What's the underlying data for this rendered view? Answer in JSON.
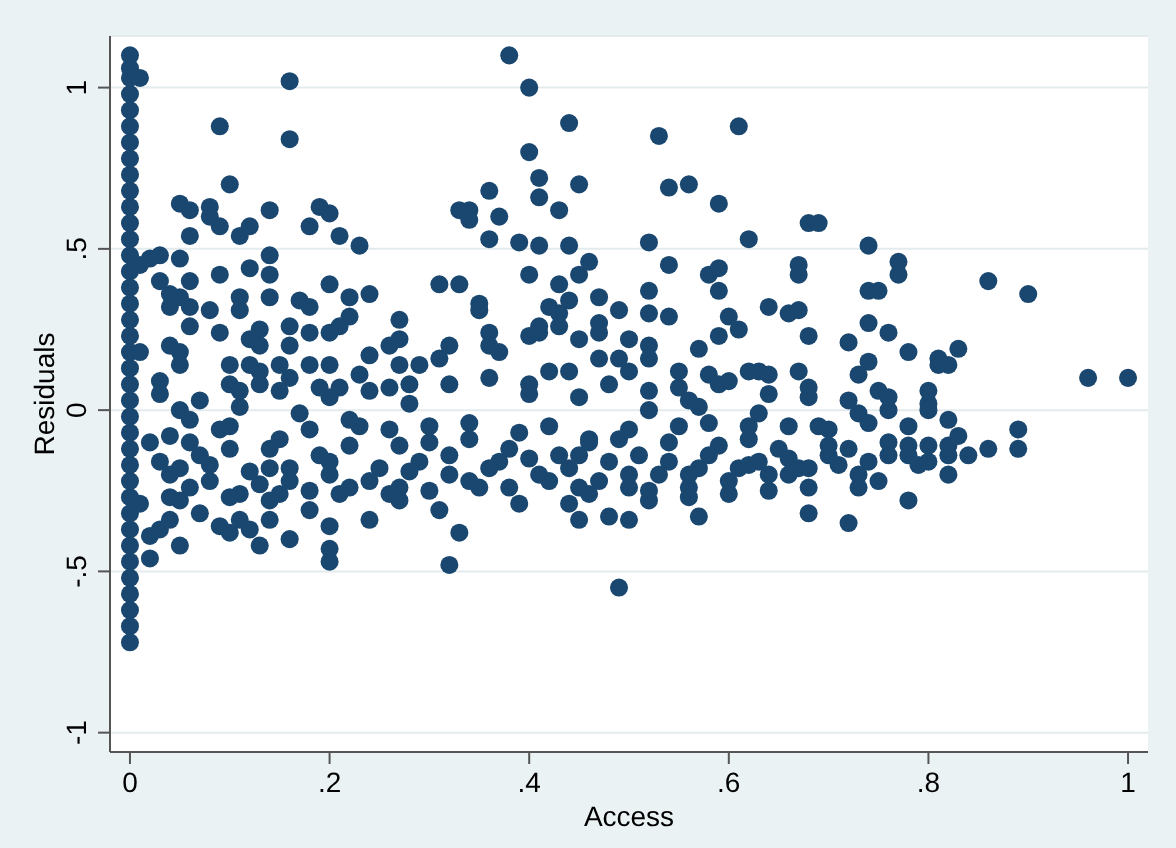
{
  "chart_data": {
    "type": "scatter",
    "xlabel": "Access",
    "ylabel": "Residuals",
    "color": "#1a476f",
    "marker": "circle",
    "grid": "y",
    "xlim": [
      -0.02,
      1.02
    ],
    "ylim": [
      -1.06,
      1.16
    ],
    "xticks": [
      0,
      {
        "value": 0.2,
        "label": ".2"
      },
      {
        "value": 0.4,
        "label": ".4"
      },
      {
        "value": 0.6,
        "label": ".6"
      },
      {
        "value": 0.8,
        "label": ".8"
      },
      1
    ],
    "yticks": [
      -1,
      {
        "value": -0.5,
        "label": "-.5"
      },
      0,
      {
        "value": 0.5,
        "label": ".5"
      },
      1
    ],
    "x": [
      0,
      0,
      0,
      0,
      0,
      0,
      0,
      0,
      0,
      0,
      0,
      0,
      0,
      0,
      0,
      0,
      0,
      0,
      0,
      0,
      0,
      0,
      0,
      0,
      0,
      0,
      0,
      0,
      0,
      0,
      0,
      0,
      0,
      0,
      0,
      0,
      0,
      0,
      0.01,
      0.01,
      0.09,
      0.16,
      0.16,
      0.1,
      0.05,
      0.06,
      0.08,
      0.08,
      0.09,
      0.06,
      0.11,
      0.12,
      0.14,
      0.19,
      0.18,
      0.2,
      0.21,
      0.23,
      0.03,
      0.02,
      0.05,
      0.14,
      0.14,
      0.09,
      0.12,
      0.03,
      0.06,
      0.04,
      0.05,
      0.11,
      0.14,
      0.04,
      0.06,
      0.08,
      0.11,
      0.17,
      0.18,
      0.2,
      0.22,
      0.24,
      0.27,
      0.27,
      0.22,
      0.21,
      0.2,
      0.18,
      0.16,
      0.16,
      0.06,
      0.09,
      0.13,
      0.13,
      0.12,
      0.05,
      0.04,
      0.01,
      0.03,
      0.05,
      0.1,
      0.13,
      0.15,
      0.18,
      0.2,
      0.24,
      0.26,
      0.27,
      0.29,
      0.1,
      0.11,
      0.13,
      0.15,
      0.19,
      0.21,
      0.23,
      0.26,
      0.28,
      0.31,
      0.32,
      0.31,
      0.33,
      0.35,
      0.35,
      0.36,
      0.36,
      0.37,
      0.33,
      0.34,
      0.34,
      0.36,
      0.36,
      0.37,
      0.38,
      0.4,
      0.4,
      0.41,
      0.41,
      0.39,
      0.41,
      0.4,
      0.4,
      0.41,
      0.41,
      0.43,
      0.44,
      0.43,
      0.44,
      0.45,
      0.43,
      0.44,
      0.45,
      0.46,
      0.45,
      0.43,
      0.42,
      0.47,
      0.47,
      0.4,
      0.42,
      0.45,
      0.53,
      0.61,
      0.54,
      0.56,
      0.59,
      0.62,
      0.52,
      0.68,
      0.69,
      0.74,
      0.77,
      0.77,
      0.75,
      0.74,
      0.86,
      0.9,
      0.96,
      1,
      0.67,
      0.67,
      0.58,
      0.59,
      0.59,
      0.54,
      0.52,
      0.47,
      0.49,
      0.52,
      0.54,
      0.47,
      0.5,
      0.52,
      0.57,
      0.59,
      0.6,
      0.61,
      0.64,
      0.66,
      0.67,
      0.68,
      0.72,
      0.74,
      0.76,
      0.74,
      0.78,
      0.81,
      0.81,
      0.83,
      0.82,
      0.73,
      0.75,
      0.67,
      0.68,
      0.62,
      0.63,
      0.64,
      0.58,
      0.55,
      0.52,
      0.5,
      0.49,
      0.59,
      0.55,
      0.89,
      0.83,
      0.8,
      0.02,
      0.05,
      0.02,
      0.03,
      0.01,
      0.07,
      0.09,
      0.1,
      0.11,
      0.13,
      0.16,
      0.12,
      0.14,
      0.15,
      0.2,
      0.2,
      0.2,
      0.18,
      0.24,
      0.27,
      0.32,
      0.33,
      0.31,
      0.39,
      0.44,
      0.45,
      0.04,
      0.05,
      0.04,
      0.03,
      0.02,
      0.04,
      0.05,
      0.06,
      0.05,
      0.07,
      0.09,
      0.08,
      0.1,
      0.11,
      0.11,
      0.13,
      0.14,
      0.15,
      0.16,
      0.17,
      0.19,
      0.2,
      0.21,
      0.22,
      0.23,
      0.25,
      0.27,
      0.27,
      0.29,
      0.3,
      0.32,
      0.34,
      0.35,
      0.37,
      0.39,
      0.41,
      0.43,
      0.45,
      0.46,
      0.48,
      0.5,
      0.57,
      0.68,
      0.72,
      0.78,
      0.49,
      0.89,
      0.84,
      0.82,
      0.8,
      0.79,
      0.78,
      0.76,
      0.73,
      0.73,
      0.71,
      0.7,
      0.69,
      0.67,
      0.66,
      0.65,
      0.63,
      0.62,
      0.61,
      0.59,
      0.57,
      0.56,
      0.55,
      0.53,
      0.51,
      0.5,
      0.49,
      0.47,
      0.45,
      0.8,
      0.76,
      0.73,
      0.63,
      0.57,
      0.52,
      0.04,
      0.06,
      0.08,
      0.1,
      0.12,
      0.14,
      0.16,
      0.18,
      0.2,
      0.22,
      0.24,
      0.26,
      0.28,
      0.3,
      0.32,
      0.34,
      0.36,
      0.38,
      0.4,
      0.42,
      0.44,
      0.46,
      0.48,
      0.5,
      0.52,
      0.54,
      0.56,
      0.58,
      0.6,
      0.62,
      0.64,
      0.66,
      0.68,
      0.7,
      0.72,
      0.74,
      0.76,
      0.78,
      0.8,
      0.82,
      0.06,
      0.1,
      0.14,
      0.18,
      0.22,
      0.26,
      0.3,
      0.34,
      0.38,
      0.42,
      0.46,
      0.5,
      0.54,
      0.58,
      0.62,
      0.66,
      0.7,
      0.74,
      0.78,
      0.82,
      0.03,
      0.07,
      0.12,
      0.16,
      0.2,
      0.24,
      0.28,
      0.32,
      0.36,
      0.4,
      0.44,
      0.48,
      0.52,
      0.56,
      0.6,
      0.64,
      0.68,
      0.72,
      0.76,
      0.8,
      0.52,
      0.56,
      0.6,
      0.64,
      0.68,
      0.75,
      0.82,
      0.86
    ],
    "values": [
      -0.72,
      -0.67,
      -0.62,
      -0.57,
      -0.52,
      -0.47,
      -0.42,
      -0.37,
      -0.32,
      -0.27,
      -0.22,
      -0.17,
      -0.12,
      -0.07,
      -0.02,
      0.03,
      0.08,
      0.13,
      0.18,
      0.23,
      0.28,
      0.33,
      0.38,
      0.43,
      0.48,
      0.53,
      0.58,
      0.63,
      0.68,
      0.73,
      0.78,
      0.83,
      0.88,
      0.93,
      0.98,
      1.03,
      1.06,
      1.1,
      0.45,
      1.03,
      0.88,
      1.02,
      0.84,
      0.7,
      0.64,
      0.62,
      0.63,
      0.6,
      0.57,
      0.54,
      0.54,
      0.57,
      0.62,
      0.63,
      0.57,
      0.61,
      0.54,
      0.51,
      0.48,
      0.47,
      0.47,
      0.48,
      0.42,
      0.42,
      0.44,
      0.4,
      0.4,
      0.36,
      0.35,
      0.35,
      0.35,
      0.32,
      0.32,
      0.31,
      0.31,
      0.34,
      0.32,
      0.39,
      0.35,
      0.36,
      0.28,
      0.22,
      0.29,
      0.26,
      0.24,
      0.24,
      0.26,
      0.2,
      0.26,
      0.24,
      0.25,
      0.2,
      0.22,
      0.18,
      0.2,
      0.18,
      0.09,
      0.14,
      0.14,
      0.12,
      0.14,
      0.14,
      0.14,
      0.17,
      0.2,
      0.14,
      0.14,
      0.08,
      0.06,
      0.08,
      0.06,
      0.07,
      0.07,
      0.11,
      0.07,
      0.08,
      0.16,
      0.2,
      0.39,
      0.39,
      0.33,
      0.31,
      0.24,
      0.2,
      0.18,
      0.62,
      0.62,
      0.59,
      0.68,
      0.53,
      0.6,
      1.1,
      1.0,
      0.8,
      0.72,
      0.66,
      0.52,
      0.51,
      0.42,
      0.23,
      0.26,
      0.24,
      0.26,
      0.51,
      0.39,
      0.89,
      0.7,
      0.62,
      0.34,
      0.42,
      0.46,
      0.22,
      0.3,
      0.32,
      0.27,
      0.16,
      0.08,
      0.12,
      0.04,
      0.85,
      0.88,
      0.69,
      0.7,
      0.64,
      0.53,
      0.52,
      0.58,
      0.58,
      0.51,
      0.46,
      0.42,
      0.37,
      0.37,
      0.4,
      0.36,
      0.1,
      0.1,
      0.45,
      0.42,
      0.42,
      0.44,
      0.37,
      0.45,
      0.37,
      0.35,
      0.31,
      0.3,
      0.29,
      0.24,
      0.22,
      0.2,
      0.19,
      0.23,
      0.29,
      0.25,
      0.32,
      0.3,
      0.31,
      0.23,
      0.21,
      0.27,
      0.24,
      0.15,
      0.18,
      0.14,
      0.16,
      0.19,
      0.14,
      0.11,
      0.06,
      0.12,
      0.04,
      0.12,
      0.12,
      0.11,
      0.11,
      0.12,
      0.16,
      0.12,
      0.16,
      0.08,
      0.07,
      -0.06,
      -0.08,
      0.02,
      -0.46,
      -0.42,
      -0.39,
      -0.37,
      -0.29,
      -0.32,
      -0.36,
      -0.38,
      -0.34,
      -0.42,
      -0.4,
      -0.37,
      -0.34,
      -0.26,
      -0.43,
      -0.47,
      -0.36,
      -0.31,
      -0.34,
      -0.28,
      -0.48,
      -0.38,
      -0.31,
      -0.29,
      -0.29,
      -0.34,
      -0.34,
      -0.28,
      -0.27,
      -0.16,
      -0.1,
      -0.08,
      0,
      -0.03,
      -0.18,
      -0.14,
      -0.06,
      -0.22,
      -0.12,
      0.01,
      -0.26,
      -0.23,
      -0.18,
      -0.09,
      -0.18,
      -0.01,
      -0.14,
      -0.2,
      -0.26,
      -0.11,
      -0.05,
      -0.18,
      -0.11,
      -0.24,
      -0.16,
      -0.05,
      -0.2,
      -0.09,
      -0.24,
      -0.16,
      -0.07,
      -0.2,
      -0.14,
      -0.24,
      -0.09,
      -0.33,
      -0.34,
      -0.33,
      -0.32,
      -0.35,
      -0.28,
      -0.55,
      -0.12,
      -0.14,
      -0.11,
      -0.11,
      -0.17,
      -0.11,
      -0.14,
      -0.24,
      -0.2,
      -0.17,
      -0.11,
      -0.05,
      -0.18,
      -0.2,
      -0.12,
      -0.16,
      -0.05,
      -0.18,
      -0.11,
      -0.18,
      -0.24,
      -0.05,
      -0.2,
      -0.14,
      -0.24,
      -0.09,
      -0.22,
      -0.14,
      0,
      0,
      -0.01,
      -0.01,
      0.01,
      0,
      -0.2,
      -0.24,
      -0.17,
      -0.27,
      -0.19,
      -0.28,
      -0.22,
      -0.25,
      -0.16,
      -0.24,
      -0.22,
      -0.26,
      -0.19,
      -0.25,
      -0.14,
      -0.22,
      -0.18,
      -0.24,
      -0.15,
      -0.22,
      -0.18,
      -0.26,
      -0.16,
      -0.2,
      -0.25,
      -0.16,
      -0.2,
      -0.14,
      -0.22,
      -0.17,
      -0.2,
      -0.15,
      -0.18,
      -0.14,
      -0.12,
      -0.16,
      -0.1,
      -0.14,
      -0.16,
      -0.14,
      -0.1,
      -0.05,
      -0.12,
      -0.06,
      -0.03,
      -0.06,
      -0.1,
      -0.04,
      -0.12,
      -0.05,
      -0.1,
      -0.06,
      -0.1,
      -0.04,
      -0.09,
      -0.05,
      -0.06,
      -0.04,
      -0.05,
      -0.03,
      0.05,
      0.03,
      0.14,
      0.1,
      0.04,
      0.06,
      0.02,
      0.08,
      0.1,
      0.05,
      0.12,
      0.08,
      0.06,
      0.03,
      0.09,
      0.05,
      0.07,
      0.03,
      0.04,
      0.06,
      -0.28,
      -0.27,
      -0.26,
      -0.25,
      -0.24,
      -0.22,
      -0.2,
      -0.12
    ]
  }
}
